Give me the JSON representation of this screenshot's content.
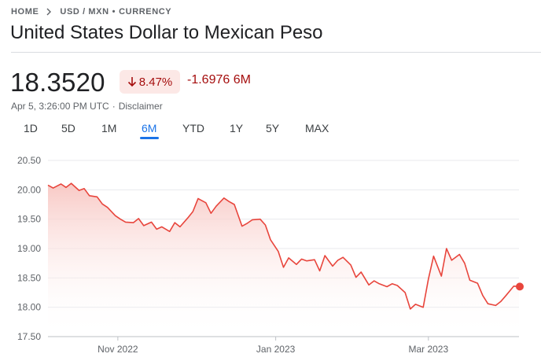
{
  "breadcrumb": {
    "home": "HOME",
    "pair": "USD / MXN",
    "separator": "•",
    "kind": "CURRENCY"
  },
  "title": "United States Dollar to Mexican Peso",
  "quote": {
    "price": "18.3520",
    "percent_change": "8.47%",
    "direction": "down",
    "change": "-1.6976 6M",
    "timestamp": "Apr 5, 3:26:00 PM UTC",
    "meta_separator": "·",
    "disclaimer": "Disclaimer"
  },
  "tabs": [
    {
      "label": "1D",
      "active": false
    },
    {
      "label": "5D",
      "active": false
    },
    {
      "label": "1M",
      "active": false
    },
    {
      "label": "6M",
      "active": true
    },
    {
      "label": "YTD",
      "active": false
    },
    {
      "label": "1Y",
      "active": false
    },
    {
      "label": "5Y",
      "active": false
    },
    {
      "label": "MAX",
      "active": false
    }
  ],
  "colors": {
    "line": "#e8453c",
    "fill_top": "#f8c9c5",
    "negative_text": "#a50e0e",
    "negative_bg": "#fce8e6",
    "accent": "#1a73e8"
  },
  "chart_data": {
    "type": "area",
    "ylim": [
      17.5,
      20.5
    ],
    "yticks": [
      "20.50",
      "20.00",
      "19.50",
      "19.00",
      "18.50",
      "18.00",
      "17.50"
    ],
    "xticks": [
      "Nov 2022",
      "Jan 2023",
      "Mar 2023"
    ],
    "grid": true,
    "x": [
      "2022-10-05",
      "2022-10-07",
      "2022-10-10",
      "2022-10-12",
      "2022-10-14",
      "2022-10-17",
      "2022-10-19",
      "2022-10-21",
      "2022-10-24",
      "2022-10-26",
      "2022-10-28",
      "2022-10-31",
      "2022-11-02",
      "2022-11-04",
      "2022-11-07",
      "2022-11-09",
      "2022-11-11",
      "2022-11-14",
      "2022-11-16",
      "2022-11-18",
      "2022-11-21",
      "2022-11-23",
      "2022-11-25",
      "2022-11-28",
      "2022-11-30",
      "2022-12-02",
      "2022-12-05",
      "2022-12-07",
      "2022-12-09",
      "2022-12-12",
      "2022-12-14",
      "2022-12-16",
      "2022-12-19",
      "2022-12-21",
      "2022-12-23",
      "2022-12-26",
      "2022-12-28",
      "2022-12-30",
      "2023-01-02",
      "2023-01-04",
      "2023-01-06",
      "2023-01-09",
      "2023-01-11",
      "2023-01-13",
      "2023-01-16",
      "2023-01-18",
      "2023-01-20",
      "2023-01-23",
      "2023-01-25",
      "2023-01-27",
      "2023-01-30",
      "2023-02-01",
      "2023-02-03",
      "2023-02-06",
      "2023-02-08",
      "2023-02-10",
      "2023-02-13",
      "2023-02-15",
      "2023-02-17",
      "2023-02-20",
      "2023-02-22",
      "2023-02-24",
      "2023-02-27",
      "2023-03-01",
      "2023-03-03",
      "2023-03-06",
      "2023-03-08",
      "2023-03-10",
      "2023-03-13",
      "2023-03-15",
      "2023-03-17",
      "2023-03-20",
      "2023-03-22",
      "2023-03-24",
      "2023-03-27",
      "2023-03-29",
      "2023-03-31",
      "2023-04-03",
      "2023-04-05"
    ],
    "values": [
      20.08,
      20.03,
      20.1,
      20.04,
      20.11,
      19.99,
      20.02,
      19.9,
      19.88,
      19.76,
      19.7,
      19.56,
      19.5,
      19.45,
      19.44,
      19.51,
      19.39,
      19.45,
      19.33,
      19.37,
      19.29,
      19.44,
      19.37,
      19.52,
      19.63,
      19.85,
      19.78,
      19.6,
      19.72,
      19.86,
      19.8,
      19.75,
      19.38,
      19.43,
      19.49,
      19.5,
      19.4,
      19.15,
      18.95,
      18.68,
      18.84,
      18.73,
      18.82,
      18.79,
      18.81,
      18.62,
      18.88,
      18.7,
      18.8,
      18.85,
      18.72,
      18.51,
      18.6,
      18.38,
      18.45,
      18.4,
      18.35,
      18.4,
      18.37,
      18.25,
      17.97,
      18.05,
      18.0,
      18.48,
      18.87,
      18.53,
      19.0,
      18.8,
      18.9,
      18.75,
      18.46,
      18.41,
      18.2,
      18.06,
      18.03,
      18.1,
      18.2,
      18.36,
      18.352
    ]
  }
}
